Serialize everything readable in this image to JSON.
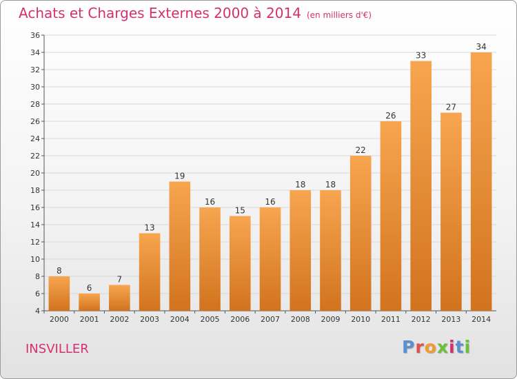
{
  "header": {
    "title": "Achats et Charges Externes 2000 à 2014",
    "unit": "(en milliers d'€)"
  },
  "footer": {
    "commune": "INSVILLER",
    "logo_text": "Proxiti",
    "logo_colors": [
      "#5a8fd1",
      "#e0504f",
      "#f29a2e",
      "#6cbf3a",
      "#d4306e",
      "#5a8fd1",
      "#6cbf3a"
    ]
  },
  "colors": {
    "title": "#d4306e",
    "bar_top": "#f7a54f",
    "bar_bottom": "#d2731e",
    "grid": "#d8d8d8"
  },
  "chart_data": {
    "type": "bar",
    "title": "Achats et Charges Externes 2000 à 2014",
    "subtitle": "(en milliers d'€)",
    "categories": [
      "2000",
      "2001",
      "2002",
      "2003",
      "2004",
      "2005",
      "2006",
      "2007",
      "2008",
      "2009",
      "2010",
      "2011",
      "2012",
      "2013",
      "2014"
    ],
    "values": [
      8,
      6,
      7,
      13,
      19,
      16,
      15,
      16,
      18,
      18,
      22,
      26,
      33,
      27,
      34
    ],
    "ylim": [
      4,
      36
    ],
    "yticks": [
      4,
      6,
      8,
      10,
      12,
      14,
      16,
      18,
      20,
      22,
      24,
      26,
      28,
      30,
      32,
      34,
      36
    ],
    "grid": true,
    "data_labels": true,
    "legend": "none"
  }
}
